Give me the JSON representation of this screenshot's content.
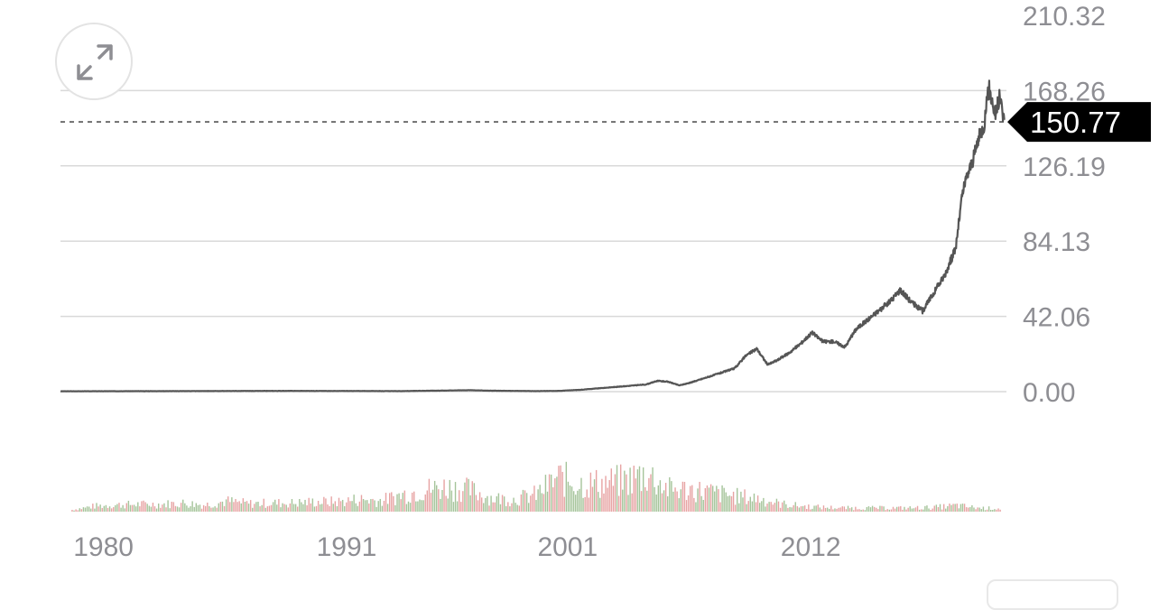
{
  "chart_data": {
    "type": "line",
    "ylim": [
      0,
      210.32
    ],
    "y_ticks": [
      {
        "value": 210.32,
        "label": "210.32"
      },
      {
        "value": 168.26,
        "label": "168.26"
      },
      {
        "value": 126.19,
        "label": "126.19"
      },
      {
        "value": 84.13,
        "label": "84.13"
      },
      {
        "value": 42.06,
        "label": "42.06"
      },
      {
        "value": 0,
        "label": "0.00"
      }
    ],
    "x_ticks": [
      {
        "value": 1980,
        "label": "1980"
      },
      {
        "value": 1991,
        "label": "1991"
      },
      {
        "value": 2001,
        "label": "2001"
      },
      {
        "value": 2012,
        "label": "2012"
      }
    ],
    "xlim": [
      1979.5,
      2022.3
    ],
    "current_value": 150.77,
    "current_label": "150.77",
    "price": {
      "x": [
        1980.0,
        1985.0,
        1990.0,
        1995.0,
        1998.0,
        1999.0,
        2001.0,
        2002.0,
        2003.0,
        2004.0,
        2005.0,
        2006.0,
        2006.5,
        2007.0,
        2007.5,
        2008.0,
        2009.0,
        2010.0,
        2010.5,
        2011.0,
        2011.5,
        2012.0,
        2012.5,
        2013.0,
        2013.5,
        2014.0,
        2014.5,
        2015.0,
        2015.5,
        2016.0,
        2016.5,
        2017.0,
        2017.5,
        2018.0,
        2018.5,
        2019.0,
        2019.5,
        2020.0,
        2020.3,
        2020.5,
        2020.8,
        2021.0,
        2021.3,
        2021.5,
        2021.8,
        2022.0,
        2022.2
      ],
      "y": [
        0.2,
        0.3,
        0.4,
        0.3,
        0.8,
        0.5,
        0.3,
        0.4,
        1.0,
        2.0,
        3.0,
        4.0,
        6.0,
        5.5,
        3.5,
        5.0,
        9.0,
        13.0,
        20.0,
        24.0,
        15.0,
        18.0,
        22.0,
        27.0,
        33.0,
        28.0,
        28.0,
        25.0,
        35.0,
        40.0,
        45.0,
        50.0,
        57.0,
        50.0,
        45.0,
        55.0,
        65.0,
        80.0,
        110.0,
        120.0,
        130.0,
        140.0,
        150.0,
        170.0,
        155.0,
        165.0,
        150.77
      ]
    },
    "volume": {
      "x": [
        1980,
        1981,
        1982,
        1983,
        1984,
        1985,
        1986,
        1987,
        1988,
        1989,
        1990,
        1991,
        1992,
        1993,
        1994,
        1995,
        1996,
        1997,
        1998,
        1999,
        2000,
        2001,
        2002,
        2003,
        2004,
        2005,
        2006,
        2007,
        2008,
        2009,
        2010,
        2011,
        2012,
        2013,
        2014,
        2015,
        2016,
        2017,
        2018,
        2019,
        2020,
        2021,
        2022
      ],
      "values": [
        0.03,
        0.09,
        0.11,
        0.12,
        0.12,
        0.14,
        0.11,
        0.17,
        0.13,
        0.14,
        0.14,
        0.16,
        0.16,
        0.2,
        0.18,
        0.28,
        0.36,
        0.4,
        0.35,
        0.22,
        0.2,
        0.28,
        0.55,
        0.45,
        0.46,
        0.5,
        0.62,
        0.36,
        0.36,
        0.31,
        0.25,
        0.22,
        0.13,
        0.09,
        0.07,
        0.06,
        0.06,
        0.06,
        0.06,
        0.07,
        0.1,
        0.06,
        0.05
      ],
      "colors": [
        "#a5c49a",
        "#e7a3a3"
      ]
    },
    "grid": true,
    "colors": {
      "line": "#555555",
      "grid": "#d9d9d9",
      "label_bg": "#000000",
      "dashed": "#555555"
    }
  },
  "controls": {
    "expand_icon": "expand-arrows-icon"
  }
}
